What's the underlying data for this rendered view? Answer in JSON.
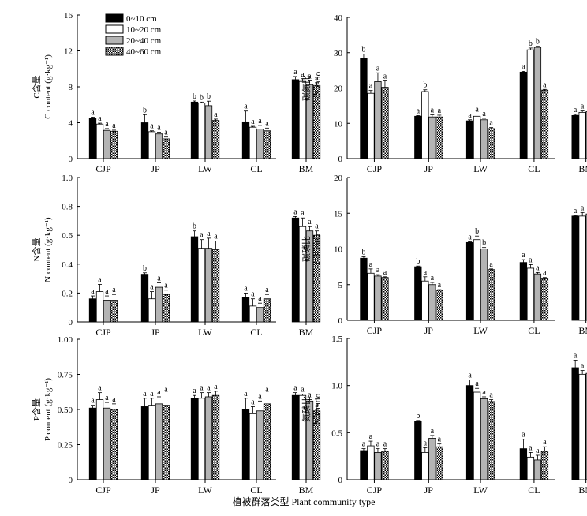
{
  "figure": {
    "xlabel": "植被群落类型 Plant community type",
    "legend": [
      "0~10 cm",
      "10~20 cm",
      "20~40 cm",
      "40~60 cm"
    ]
  },
  "chart_data": [
    {
      "type": "bar",
      "panel": "a",
      "categories": [
        "CJP",
        "JP",
        "LW",
        "CL",
        "BM"
      ],
      "ylabel_cn": "C含量",
      "ylabel_en": "C content (g·kg⁻¹)",
      "ylim": [
        0,
        16
      ],
      "yticks": [
        "0",
        "4",
        "8",
        "12",
        "16"
      ],
      "series": [
        {
          "name": "0~10 cm",
          "values": [
            4.5,
            4.0,
            6.3,
            4.1,
            8.8
          ],
          "errors": [
            0.12,
            0.9,
            0.12,
            1.2,
            0.35
          ]
        },
        {
          "name": "10~20 cm",
          "values": [
            3.85,
            3.0,
            6.2,
            3.5,
            8.6
          ],
          "errors": [
            0.1,
            0.1,
            0.1,
            0.1,
            0.3
          ]
        },
        {
          "name": "20~40 cm",
          "values": [
            3.15,
            2.75,
            5.9,
            3.3,
            8.25
          ],
          "errors": [
            0.2,
            0.2,
            0.5,
            0.4,
            0.4
          ]
        },
        {
          "name": "40~60 cm",
          "values": [
            3.05,
            2.2,
            4.25,
            3.1,
            8.15
          ],
          "errors": [
            0.12,
            0.2,
            0.15,
            0.3,
            0.3
          ]
        }
      ],
      "sig": [
        [
          "a",
          "a",
          "a",
          "a"
        ],
        [
          "b",
          "a",
          "a",
          "a"
        ],
        [
          "b",
          "b",
          "b",
          "a"
        ],
        [
          "a",
          "a",
          "a",
          "a"
        ],
        [
          "a",
          "a",
          "a",
          "a"
        ]
      ]
    },
    {
      "type": "bar",
      "panel": "b",
      "categories": [
        "CJP",
        "JP",
        "LW",
        "CL",
        "BM"
      ],
      "ylabel_cn": "碳氮比",
      "ylabel_en": "C/N ratio",
      "ylim": [
        0,
        40
      ],
      "yticks": [
        "0",
        "10",
        "20",
        "30",
        "40"
      ],
      "series": [
        {
          "name": "0~10 cm",
          "values": [
            28.3,
            12.0,
            10.7,
            24.5,
            12.2
          ],
          "errors": [
            1.3,
            0.2,
            0.3,
            0.2,
            0.3
          ]
        },
        {
          "name": "10~20 cm",
          "values": [
            18.5,
            19.0,
            12.0,
            30.8,
            13.1
          ],
          "errors": [
            0.8,
            0.5,
            0.6,
            0.5,
            0.4
          ]
        },
        {
          "name": "20~40 cm",
          "values": [
            21.8,
            11.8,
            11.0,
            31.5,
            13.3
          ],
          "errors": [
            2.5,
            0.6,
            0.4,
            0.3,
            0.4
          ]
        },
        {
          "name": "40~60 cm",
          "values": [
            20.2,
            11.8,
            8.5,
            19.4,
            13.5
          ],
          "errors": [
            1.8,
            0.5,
            0.3,
            0.2,
            0.3
          ]
        }
      ],
      "sig": [
        [
          "b",
          "a",
          "a",
          "a"
        ],
        [
          "a",
          "b",
          "a",
          "a"
        ],
        [
          "a",
          "a",
          "a",
          "a"
        ],
        [
          "a",
          "b",
          "b",
          "a"
        ],
        [
          "a",
          "a",
          "a",
          "a"
        ]
      ]
    },
    {
      "type": "bar",
      "panel": "c",
      "categories": [
        "CJP",
        "JP",
        "LW",
        "CL",
        "BM"
      ],
      "ylabel_cn": "N含量",
      "ylabel_en": "N content (g·kg⁻¹)",
      "ylim": [
        0,
        1.0
      ],
      "yticks": [
        "0",
        "0.2",
        "0.4",
        "0.6",
        "0.8",
        "1.0"
      ],
      "series": [
        {
          "name": "0~10 cm",
          "values": [
            0.16,
            0.33,
            0.59,
            0.17,
            0.72
          ],
          "errors": [
            0.02,
            0.01,
            0.04,
            0.03,
            0.01
          ]
        },
        {
          "name": "10~20 cm",
          "values": [
            0.21,
            0.16,
            0.51,
            0.11,
            0.66
          ],
          "errors": [
            0.05,
            0.05,
            0.06,
            0.05,
            0.06
          ]
        },
        {
          "name": "20~40 cm",
          "values": [
            0.15,
            0.24,
            0.51,
            0.1,
            0.63
          ],
          "errors": [
            0.03,
            0.03,
            0.07,
            0.03,
            0.03
          ]
        },
        {
          "name": "40~60 cm",
          "values": [
            0.15,
            0.19,
            0.5,
            0.16,
            0.6
          ],
          "errors": [
            0.04,
            0.03,
            0.06,
            0.03,
            0.03
          ]
        }
      ],
      "sig": [
        [
          "a",
          "a",
          "a",
          "a"
        ],
        [
          "b",
          "a",
          "a",
          "a"
        ],
        [
          "b",
          "a",
          "a",
          "a"
        ],
        [
          "a",
          "a",
          "a",
          "a"
        ],
        [
          "a",
          "a",
          "a",
          "a"
        ]
      ]
    },
    {
      "type": "bar",
      "panel": "d",
      "categories": [
        "CJP",
        "JP",
        "LW",
        "CL",
        "BM"
      ],
      "ylabel_cn": "碳磷比",
      "ylabel_en": "C/P ratio",
      "ylim": [
        0,
        20
      ],
      "yticks": [
        "0",
        "5",
        "10",
        "15",
        "20"
      ],
      "series": [
        {
          "name": "0~10 cm",
          "values": [
            8.7,
            7.5,
            10.9,
            8.1,
            14.6
          ],
          "errors": [
            0.2,
            0.1,
            0.1,
            0.4,
            0.1
          ]
        },
        {
          "name": "10~20 cm",
          "values": [
            6.6,
            5.5,
            11.3,
            7.3,
            14.6
          ],
          "errors": [
            0.6,
            0.6,
            0.5,
            0.5,
            0.5
          ]
        },
        {
          "name": "20~40 cm",
          "values": [
            6.2,
            5.0,
            10.0,
            6.5,
            14.9
          ],
          "errors": [
            0.2,
            0.3,
            0.2,
            0.2,
            0.3
          ]
        },
        {
          "name": "40~60 cm",
          "values": [
            6.0,
            4.2,
            7.1,
            5.9,
            16.6
          ],
          "errors": [
            0.1,
            0.1,
            0.1,
            0.1,
            0.3
          ]
        }
      ],
      "sig": [
        [
          "b",
          "a",
          "a",
          "a"
        ],
        [
          "b",
          "a",
          "a",
          "a"
        ],
        [
          "a",
          "b",
          "b",
          "a"
        ],
        [
          "a",
          "a",
          "a",
          "a"
        ],
        [
          "a",
          "a",
          "a",
          "a"
        ]
      ]
    },
    {
      "type": "bar",
      "panel": "e",
      "categories": [
        "CJP",
        "JP",
        "LW",
        "CL",
        "BM"
      ],
      "ylabel_cn": "P含量",
      "ylabel_en": "P content (g·kg⁻¹)",
      "ylim": [
        0,
        1.0
      ],
      "yticks": [
        "0",
        "0.25",
        "0.50",
        "0.75",
        "1.00"
      ],
      "series": [
        {
          "name": "0~10 cm",
          "values": [
            0.51,
            0.52,
            0.58,
            0.5,
            0.6
          ],
          "errors": [
            0.02,
            0.06,
            0.02,
            0.08,
            0.02
          ]
        },
        {
          "name": "10~20 cm",
          "values": [
            0.57,
            0.53,
            0.58,
            0.47,
            0.6
          ],
          "errors": [
            0.05,
            0.05,
            0.04,
            0.05,
            0.01
          ]
        },
        {
          "name": "20~40 cm",
          "values": [
            0.51,
            0.54,
            0.59,
            0.49,
            0.56
          ],
          "errors": [
            0.04,
            0.05,
            0.03,
            0.07,
            0.01
          ]
        },
        {
          "name": "40~60 cm",
          "values": [
            0.5,
            0.53,
            0.6,
            0.54,
            0.49
          ],
          "errors": [
            0.04,
            0.08,
            0.03,
            0.07,
            0.01
          ]
        }
      ],
      "sig": [
        [
          "a",
          "a",
          "a",
          "a"
        ],
        [
          "a",
          "a",
          "a",
          "a"
        ],
        [
          "a",
          "a",
          "a",
          "a"
        ],
        [
          "a",
          "a",
          "a",
          "a"
        ],
        [
          "a",
          "a",
          "a",
          "a"
        ]
      ]
    },
    {
      "type": "bar",
      "panel": "f",
      "categories": [
        "CJP",
        "JP",
        "LW",
        "CL",
        "BM"
      ],
      "ylabel_cn": "氮磷比",
      "ylabel_en": "N/P ratio",
      "ylim": [
        0,
        1.5
      ],
      "yticks": [
        "0",
        "0.5",
        "1.0",
        "1.5"
      ],
      "series": [
        {
          "name": "0~10 cm",
          "values": [
            0.31,
            0.62,
            1.0,
            0.33,
            1.19
          ],
          "errors": [
            0.02,
            0.01,
            0.06,
            0.1,
            0.08
          ]
        },
        {
          "name": "10~20 cm",
          "values": [
            0.36,
            0.29,
            0.93,
            0.24,
            1.12
          ],
          "errors": [
            0.05,
            0.05,
            0.04,
            0.05,
            0.04
          ]
        },
        {
          "name": "20~40 cm",
          "values": [
            0.29,
            0.44,
            0.86,
            0.21,
            1.13
          ],
          "errors": [
            0.04,
            0.03,
            0.02,
            0.05,
            0.03
          ]
        },
        {
          "name": "40~60 cm",
          "values": [
            0.3,
            0.35,
            0.83,
            0.3,
            1.23
          ],
          "errors": [
            0.03,
            0.03,
            0.02,
            0.05,
            0.03
          ]
        }
      ],
      "sig": [
        [
          "a",
          "a",
          "a",
          "a"
        ],
        [
          "b",
          "a",
          "a",
          "a"
        ],
        [
          "a",
          "a",
          "a",
          "a"
        ],
        [
          "a",
          "a",
          "a",
          "a"
        ],
        [
          "a",
          "a",
          "a",
          "a"
        ]
      ]
    }
  ]
}
